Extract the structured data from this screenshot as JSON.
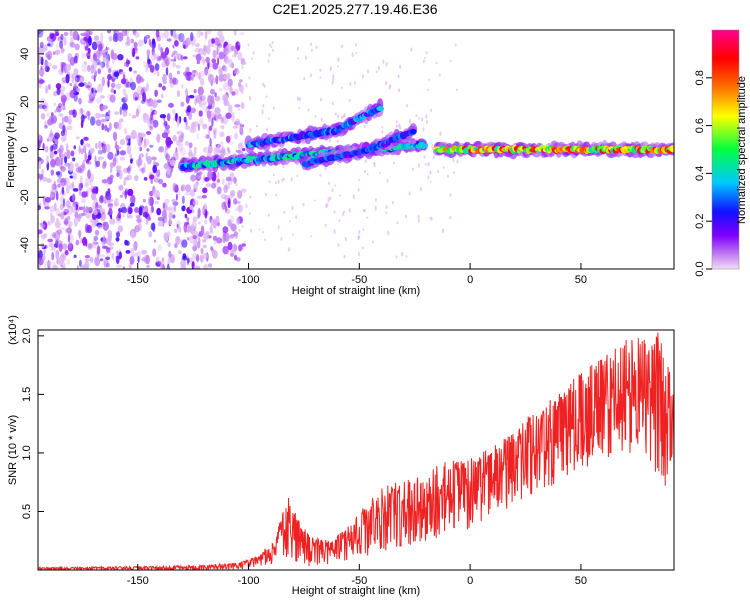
{
  "figure": {
    "title": "C2E1.2025.277.19.46.E36"
  },
  "chart_data": [
    {
      "type": "heatmap",
      "name": "spectrogram",
      "xlabel": "Height of straight line (km)",
      "ylabel": "Frequency (Hz)",
      "xlim": [
        -195,
        92
      ],
      "ylim": [
        -50,
        50
      ],
      "xticks": [
        -150,
        -100,
        -50,
        0,
        50
      ],
      "yticks": [
        -40,
        -20,
        0,
        20,
        40
      ],
      "noise_region_x": [
        -195,
        -110
      ],
      "features": [
        {
          "label": "main trace",
          "x": [
            -15,
            92
          ],
          "y": [
            0,
            0
          ],
          "amplitude": 0.85
        },
        {
          "label": "lower branch",
          "x": [
            -130,
            -70,
            -20
          ],
          "y": [
            -7,
            -2,
            2
          ],
          "amplitude": 0.45
        },
        {
          "label": "upper branch",
          "x": [
            -100,
            -60,
            -40
          ],
          "y": [
            2,
            8,
            18
          ],
          "amplitude": 0.35
        },
        {
          "label": "middle branch",
          "x": [
            -75,
            -45,
            -25
          ],
          "y": [
            -6,
            0,
            8
          ],
          "amplitude": 0.3
        }
      ],
      "colorbar": {
        "label": "Normalized spectral amplitude",
        "range": [
          0.0,
          1.0
        ],
        "ticks": [
          "0.0",
          "0.2",
          "0.4",
          "0.6",
          "0.8"
        ],
        "colors": [
          "#f2d6f7",
          "#8000ff",
          "#0000ff",
          "#00c8ff",
          "#00ff40",
          "#ffff00",
          "#ff6000",
          "#ff0000",
          "#ff00a0"
        ]
      }
    },
    {
      "type": "line",
      "name": "snr",
      "xlabel": "Height of straight line (km)",
      "ylabel": "SNR (10 * v/v)",
      "scale_label": "(x10⁴)",
      "xlim": [
        -195,
        92
      ],
      "ylim": [
        0,
        2.05
      ],
      "xticks": [
        -150,
        -100,
        -50,
        0,
        50
      ],
      "yticks": [
        "0.5",
        "1.0",
        "1.5",
        "2.0"
      ],
      "color": "#ee2222",
      "envelope": {
        "x": [
          -195,
          -150,
          -120,
          -105,
          -95,
          -88,
          -82,
          -78,
          -72,
          -62,
          -50,
          -40,
          -30,
          -20,
          -10,
          0,
          10,
          20,
          30,
          40,
          50,
          60,
          70,
          80,
          88,
          92
        ],
        "min": [
          0.0,
          0.0,
          0.0,
          0.0,
          0.02,
          0.05,
          0.08,
          0.06,
          0.03,
          0.05,
          0.1,
          0.15,
          0.2,
          0.25,
          0.3,
          0.35,
          0.45,
          0.55,
          0.65,
          0.75,
          0.85,
          0.95,
          1.0,
          0.95,
          0.7,
          0.8
        ],
        "max": [
          0.02,
          0.03,
          0.04,
          0.06,
          0.12,
          0.3,
          0.65,
          0.45,
          0.28,
          0.25,
          0.5,
          0.7,
          0.78,
          0.85,
          0.95,
          0.95,
          1.05,
          1.2,
          1.4,
          1.5,
          1.7,
          1.85,
          2.0,
          2.0,
          2.05,
          1.5
        ]
      }
    }
  ]
}
